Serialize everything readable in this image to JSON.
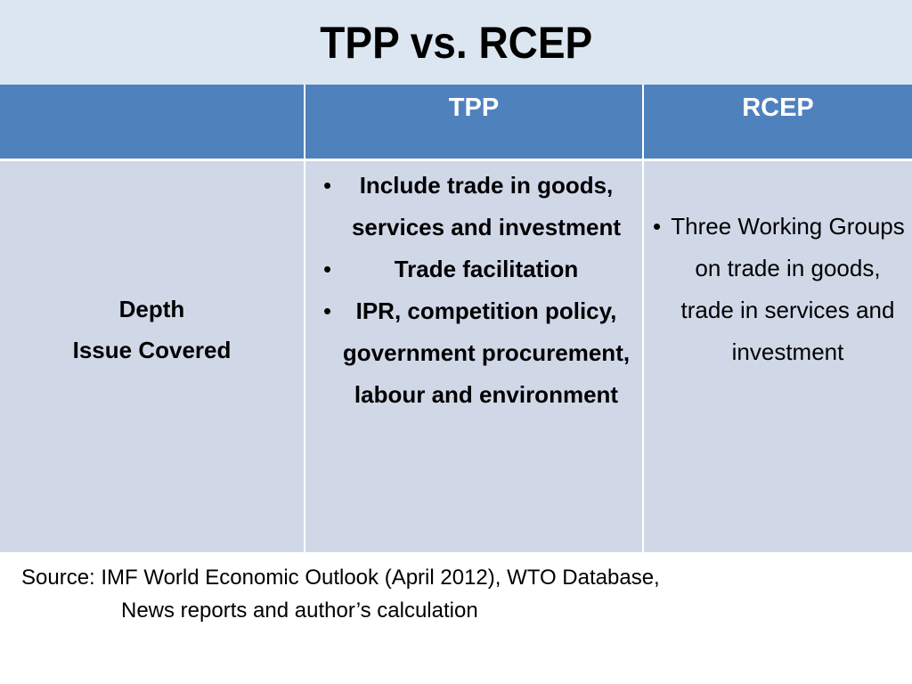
{
  "title": "TPP vs. RCEP",
  "table": {
    "headers": [
      "",
      "TPP",
      "RCEP"
    ],
    "row": {
      "label_line1": "Depth",
      "label_line2": "Issue Covered",
      "tpp_points": [
        "Include trade in goods, services and investment",
        "Trade facilitation",
        "IPR, competition policy, government procurement, labour and environment"
      ],
      "rcep_points": [
        "Three Working Groups on trade in goods, trade in services and investment"
      ]
    }
  },
  "source": {
    "line1": "Source: IMF World Economic Outlook  (April 2012), WTO Database,",
    "line2": "News reports and author’s calculation"
  },
  "colors": {
    "title_bg": "#dce6f1",
    "header_bg": "#4f81bd",
    "body_bg": "#d0d8e8",
    "rcep_text": "#ff0000"
  }
}
